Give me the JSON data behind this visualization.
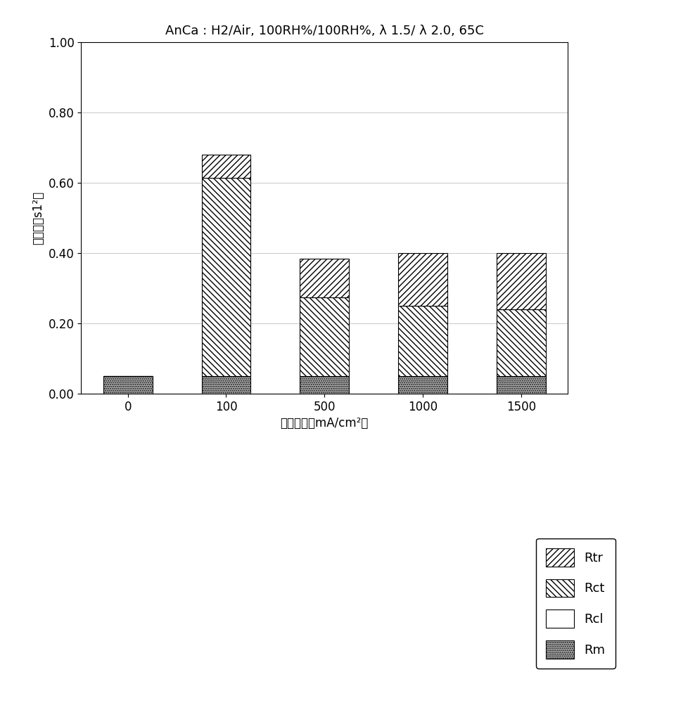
{
  "title": "AnCa : H2/Air, 100RH%/100RH%, λ 1.5/ λ 2.0, 65C",
  "xlabel": "电流密度［mA/cm²］",
  "ylabel": "电阻（阵s1²）",
  "categories": [
    "0",
    "100",
    "500",
    "1000",
    "1500"
  ],
  "Rm": [
    0.05,
    0.05,
    0.05,
    0.05,
    0.05
  ],
  "Rcl": [
    0.0,
    0.0,
    0.0,
    0.0,
    0.0
  ],
  "Rct": [
    0.0,
    0.565,
    0.225,
    0.2,
    0.19
  ],
  "Rtr": [
    0.0,
    0.065,
    0.11,
    0.15,
    0.16
  ],
  "ylim": [
    0.0,
    1.0
  ],
  "yticks": [
    0.0,
    0.2,
    0.4,
    0.6,
    0.8,
    1.0
  ],
  "bar_width": 0.5,
  "bg_color": "#ffffff",
  "grid_color": "#c8c8c8",
  "color_Rcl": "#ffffff",
  "color_Rm": "#b8b8b8",
  "title_fontsize": 13,
  "label_fontsize": 12,
  "tick_fontsize": 12
}
